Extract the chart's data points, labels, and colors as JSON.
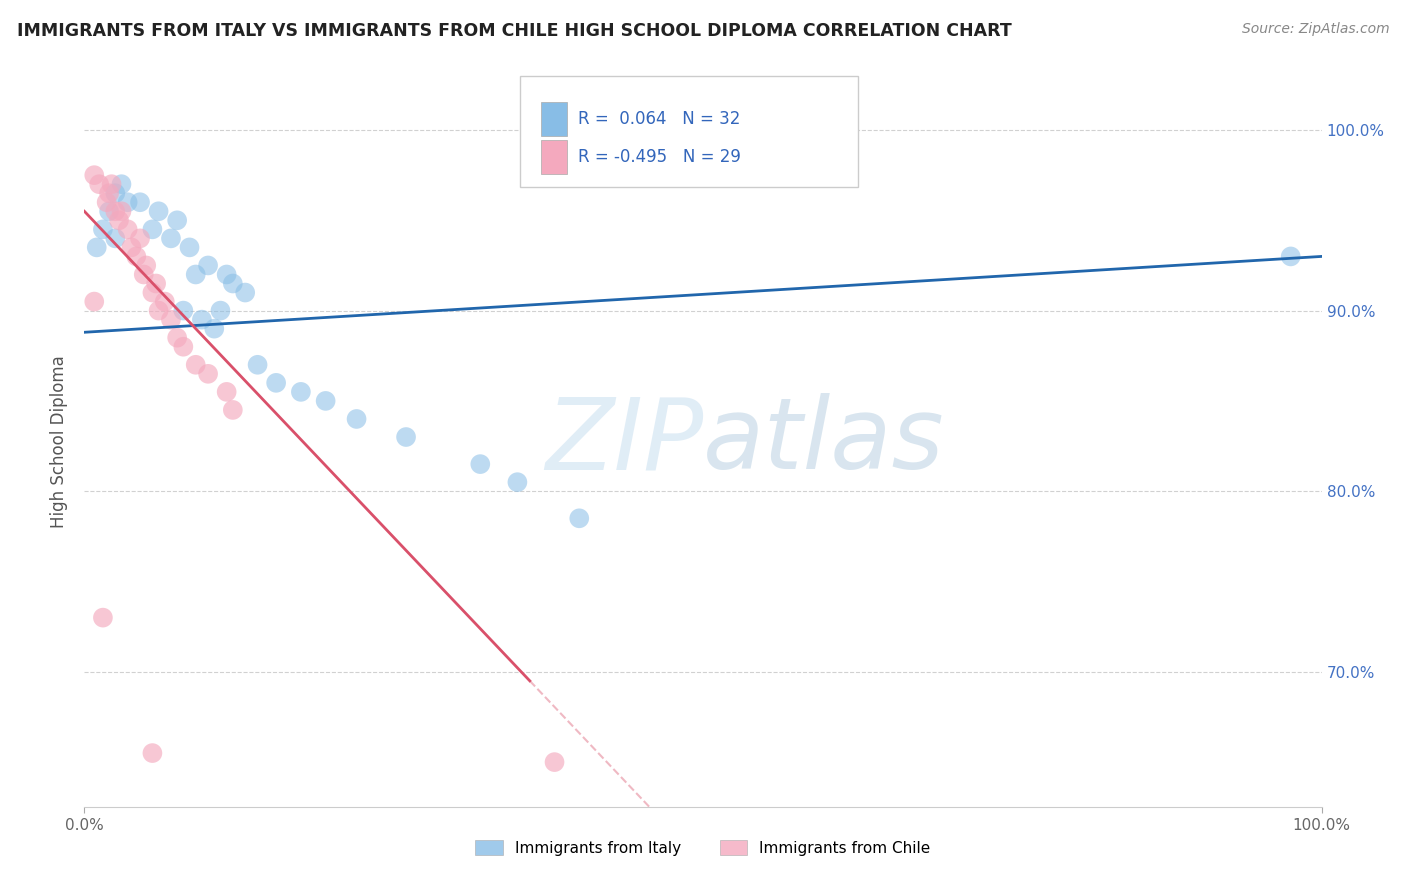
{
  "title": "IMMIGRANTS FROM ITALY VS IMMIGRANTS FROM CHILE HIGH SCHOOL DIPLOMA CORRELATION CHART",
  "source_text": "Source: ZipAtlas.com",
  "ylabel": "High School Diploma",
  "x_min": 0.0,
  "x_max": 1.0,
  "y_min": 0.625,
  "y_max": 1.03,
  "legend_label1": "Immigrants from Italy",
  "legend_label2": "Immigrants from Chile",
  "R1": "0.064",
  "N1": "32",
  "R2": "-0.495",
  "N2": "29",
  "color_italy": "#88bde6",
  "color_chile": "#f4a9be",
  "color_line_italy": "#2166ac",
  "color_line_chile": "#d9506a",
  "italy_x": [
    0.02,
    0.035,
    0.03,
    0.025,
    0.015,
    0.025,
    0.01,
    0.045,
    0.06,
    0.055,
    0.075,
    0.07,
    0.085,
    0.09,
    0.1,
    0.115,
    0.12,
    0.13,
    0.08,
    0.095,
    0.105,
    0.11,
    0.14,
    0.155,
    0.175,
    0.195,
    0.22,
    0.26,
    0.32,
    0.35,
    0.4,
    0.975
  ],
  "italy_y": [
    0.955,
    0.96,
    0.97,
    0.965,
    0.945,
    0.94,
    0.935,
    0.96,
    0.955,
    0.945,
    0.95,
    0.94,
    0.935,
    0.92,
    0.925,
    0.92,
    0.915,
    0.91,
    0.9,
    0.895,
    0.89,
    0.9,
    0.87,
    0.86,
    0.855,
    0.85,
    0.84,
    0.83,
    0.815,
    0.805,
    0.785,
    0.93
  ],
  "chile_x": [
    0.008,
    0.012,
    0.018,
    0.02,
    0.022,
    0.025,
    0.028,
    0.03,
    0.035,
    0.038,
    0.042,
    0.045,
    0.048,
    0.05,
    0.055,
    0.058,
    0.06,
    0.065,
    0.07,
    0.075,
    0.08,
    0.09,
    0.1,
    0.115,
    0.12,
    0.008,
    0.015,
    0.38,
    0.055
  ],
  "chile_y": [
    0.975,
    0.97,
    0.96,
    0.965,
    0.97,
    0.955,
    0.95,
    0.955,
    0.945,
    0.935,
    0.93,
    0.94,
    0.92,
    0.925,
    0.91,
    0.915,
    0.9,
    0.905,
    0.895,
    0.885,
    0.88,
    0.87,
    0.865,
    0.855,
    0.845,
    0.905,
    0.73,
    0.65,
    0.655
  ],
  "italy_line_x0": 0.0,
  "italy_line_x1": 1.0,
  "italy_line_y0": 0.888,
  "italy_line_y1": 0.93,
  "chile_line_x0": 0.0,
  "chile_line_x1": 0.36,
  "chile_line_y0": 0.955,
  "chile_line_y1": 0.695,
  "watermark_zip": "ZIP",
  "watermark_atlas": "atlas",
  "background_color": "#ffffff",
  "grid_color": "#cccccc"
}
